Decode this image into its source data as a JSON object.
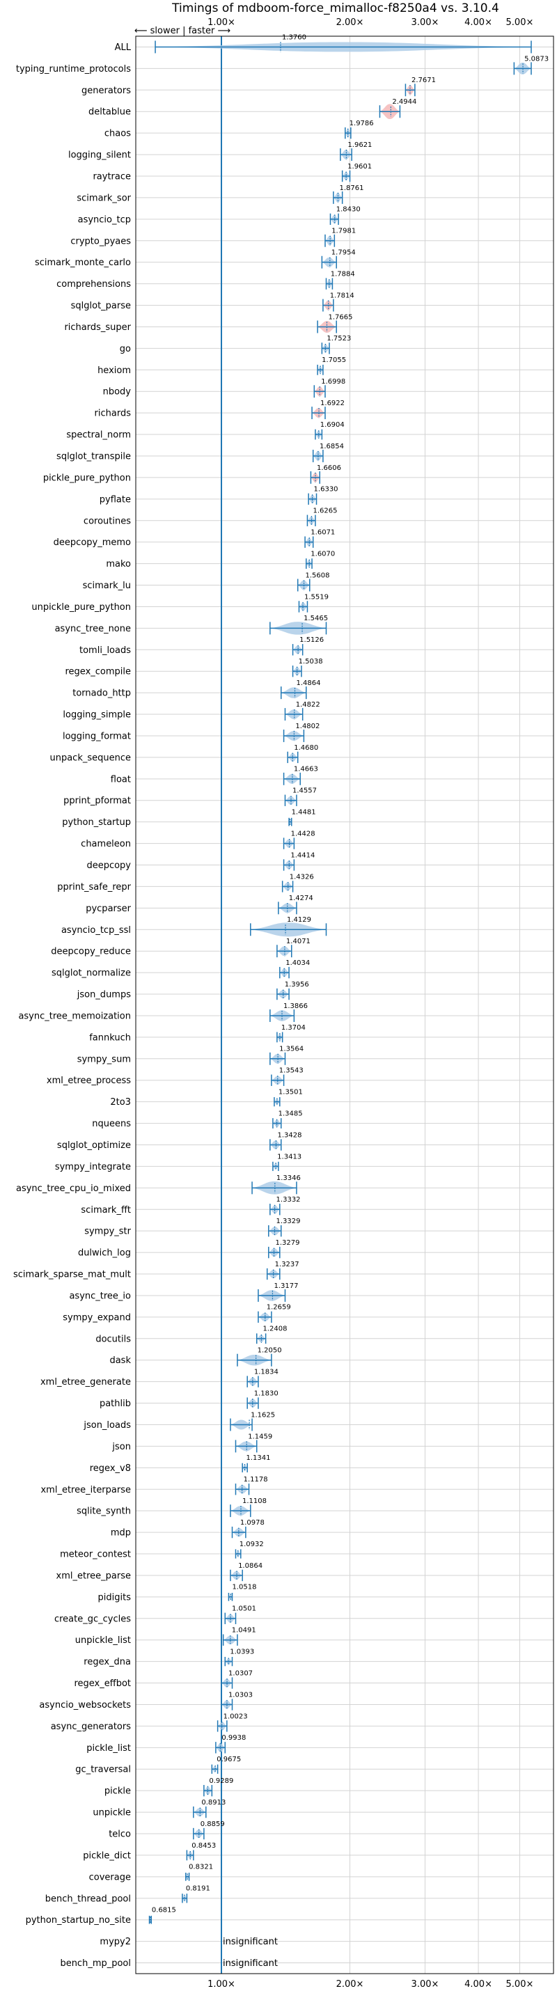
{
  "chart_data": {
    "type": "violin",
    "title": "Timings of mdboom-force_mimalloc-f8250a4 vs. 3.10.4",
    "direction_label": "⟵ slower | faster ⟶",
    "xscale": "log",
    "xlim": [
      0.63,
      6.0
    ],
    "x_ticks": [
      1.0,
      2.0,
      3.0,
      4.0,
      5.0
    ],
    "x_tick_labels": [
      "1.00×",
      "2.00×",
      "3.00×",
      "4.00×",
      "5.00×"
    ],
    "reference_line": 1.0,
    "grid": true,
    "insignificant_text": "insignificant",
    "colors": {
      "violin": "#aecde8",
      "violin_red": "#f4b8b8",
      "line": "#1f77b4",
      "grid": "#d3d3d3"
    },
    "benchmarks": [
      {
        "name": "ALL",
        "value": 1.376,
        "label": "1.3760",
        "lo": 0.7,
        "hi": 5.32,
        "w": 0.45
      },
      {
        "name": "typing_runtime_protocols",
        "value": 5.0873,
        "label": "5.0873",
        "lo": 4.85,
        "hi": 5.32,
        "w": 0.55
      },
      {
        "name": "generators",
        "value": 2.7671,
        "label": "2.7671",
        "lo": 2.7,
        "hi": 2.84,
        "w": 0.45,
        "color": "red"
      },
      {
        "name": "deltablue",
        "value": 2.4944,
        "label": "2.4944",
        "lo": 2.35,
        "hi": 2.62,
        "w": 0.7,
        "color": "red"
      },
      {
        "name": "chaos",
        "value": 1.9786,
        "label": "1.9786",
        "lo": 1.95,
        "hi": 2.01,
        "w": 0.4
      },
      {
        "name": "logging_silent",
        "value": 1.9621,
        "label": "1.9621",
        "lo": 1.9,
        "hi": 2.02,
        "w": 0.45
      },
      {
        "name": "raytrace",
        "value": 1.9601,
        "label": "1.9601",
        "lo": 1.92,
        "hi": 2.0,
        "w": 0.4
      },
      {
        "name": "scimark_sor",
        "value": 1.8761,
        "label": "1.8761",
        "lo": 1.83,
        "hi": 1.92,
        "w": 0.45
      },
      {
        "name": "asyncio_tcp",
        "value": 1.843,
        "label": "1.8430",
        "lo": 1.8,
        "hi": 1.88,
        "w": 0.4
      },
      {
        "name": "crypto_pyaes",
        "value": 1.7981,
        "label": "1.7981",
        "lo": 1.75,
        "hi": 1.84,
        "w": 0.45
      },
      {
        "name": "scimark_monte_carlo",
        "value": 1.7954,
        "label": "1.7954",
        "lo": 1.72,
        "hi": 1.86,
        "w": 0.45
      },
      {
        "name": "comprehensions",
        "value": 1.7884,
        "label": "1.7884",
        "lo": 1.76,
        "hi": 1.82,
        "w": 0.4
      },
      {
        "name": "sqlglot_parse",
        "value": 1.7814,
        "label": "1.7814",
        "lo": 1.73,
        "hi": 1.83,
        "w": 0.45,
        "color": "red"
      },
      {
        "name": "richards_super",
        "value": 1.7665,
        "label": "1.7665",
        "lo": 1.68,
        "hi": 1.86,
        "w": 0.55,
        "color": "red"
      },
      {
        "name": "go",
        "value": 1.7523,
        "label": "1.7523",
        "lo": 1.72,
        "hi": 1.79,
        "w": 0.4
      },
      {
        "name": "hexiom",
        "value": 1.7055,
        "label": "1.7055",
        "lo": 1.68,
        "hi": 1.73,
        "w": 0.35
      },
      {
        "name": "nbody",
        "value": 1.6998,
        "label": "1.6998",
        "lo": 1.65,
        "hi": 1.75,
        "w": 0.45,
        "color": "red"
      },
      {
        "name": "richards",
        "value": 1.6922,
        "label": "1.6922",
        "lo": 1.63,
        "hi": 1.75,
        "w": 0.45,
        "color": "red"
      },
      {
        "name": "spectral_norm",
        "value": 1.6904,
        "label": "1.6904",
        "lo": 1.66,
        "hi": 1.72,
        "w": 0.35
      },
      {
        "name": "sqlglot_transpile",
        "value": 1.6854,
        "label": "1.6854",
        "lo": 1.64,
        "hi": 1.73,
        "w": 0.45
      },
      {
        "name": "pickle_pure_python",
        "value": 1.6606,
        "label": "1.6606",
        "lo": 1.62,
        "hi": 1.7,
        "w": 0.45,
        "color": "red"
      },
      {
        "name": "pyflate",
        "value": 1.633,
        "label": "1.6330",
        "lo": 1.6,
        "hi": 1.67,
        "w": 0.4
      },
      {
        "name": "coroutines",
        "value": 1.6265,
        "label": "1.6265",
        "lo": 1.59,
        "hi": 1.66,
        "w": 0.4
      },
      {
        "name": "deepcopy_memo",
        "value": 1.6071,
        "label": "1.6071",
        "lo": 1.57,
        "hi": 1.64,
        "w": 0.4
      },
      {
        "name": "mako",
        "value": 1.607,
        "label": "1.6070",
        "lo": 1.58,
        "hi": 1.63,
        "w": 0.35
      },
      {
        "name": "scimark_lu",
        "value": 1.5608,
        "label": "1.5608",
        "lo": 1.51,
        "hi": 1.61,
        "w": 0.45
      },
      {
        "name": "unpickle_pure_python",
        "value": 1.5519,
        "label": "1.5519",
        "lo": 1.52,
        "hi": 1.59,
        "w": 0.4
      },
      {
        "name": "async_tree_none",
        "value": 1.5465,
        "label": "1.5465",
        "lo": 1.3,
        "hi": 1.76,
        "w": 0.6
      },
      {
        "name": "tomli_loads",
        "value": 1.5126,
        "label": "1.5126",
        "lo": 1.47,
        "hi": 1.55,
        "w": 0.4
      },
      {
        "name": "regex_compile",
        "value": 1.5038,
        "label": "1.5038",
        "lo": 1.47,
        "hi": 1.54,
        "w": 0.4
      },
      {
        "name": "tornado_http",
        "value": 1.4864,
        "label": "1.4864",
        "lo": 1.38,
        "hi": 1.58,
        "w": 0.5
      },
      {
        "name": "logging_simple",
        "value": 1.4822,
        "label": "1.4822",
        "lo": 1.41,
        "hi": 1.55,
        "w": 0.45
      },
      {
        "name": "logging_format",
        "value": 1.4802,
        "label": "1.4802",
        "lo": 1.4,
        "hi": 1.56,
        "w": 0.45
      },
      {
        "name": "unpack_sequence",
        "value": 1.468,
        "label": "1.4680",
        "lo": 1.43,
        "hi": 1.51,
        "w": 0.4
      },
      {
        "name": "float",
        "value": 1.4663,
        "label": "1.4663",
        "lo": 1.4,
        "hi": 1.53,
        "w": 0.45
      },
      {
        "name": "pprint_pformat",
        "value": 1.4557,
        "label": "1.4557",
        "lo": 1.41,
        "hi": 1.5,
        "w": 0.4
      },
      {
        "name": "python_startup",
        "value": 1.4481,
        "label": "1.4481",
        "lo": 1.44,
        "hi": 1.46,
        "w": 0.25
      },
      {
        "name": "chameleon",
        "value": 1.4428,
        "label": "1.4428",
        "lo": 1.4,
        "hi": 1.48,
        "w": 0.4
      },
      {
        "name": "deepcopy",
        "value": 1.4414,
        "label": "1.4414",
        "lo": 1.4,
        "hi": 1.48,
        "w": 0.4
      },
      {
        "name": "pprint_safe_repr",
        "value": 1.4326,
        "label": "1.4326",
        "lo": 1.39,
        "hi": 1.47,
        "w": 0.4
      },
      {
        "name": "pycparser",
        "value": 1.4274,
        "label": "1.4274",
        "lo": 1.36,
        "hi": 1.5,
        "w": 0.45
      },
      {
        "name": "asyncio_tcp_ssl",
        "value": 1.4129,
        "label": "1.4129",
        "lo": 1.17,
        "hi": 1.76,
        "w": 0.65
      },
      {
        "name": "deepcopy_reduce",
        "value": 1.4071,
        "label": "1.4071",
        "lo": 1.35,
        "hi": 1.46,
        "w": 0.45
      },
      {
        "name": "sqlglot_normalize",
        "value": 1.4034,
        "label": "1.4034",
        "lo": 1.37,
        "hi": 1.44,
        "w": 0.4
      },
      {
        "name": "json_dumps",
        "value": 1.3956,
        "label": "1.3956",
        "lo": 1.35,
        "hi": 1.44,
        "w": 0.4
      },
      {
        "name": "async_tree_memoization",
        "value": 1.3866,
        "label": "1.3866",
        "lo": 1.3,
        "hi": 1.48,
        "w": 0.5
      },
      {
        "name": "fannkuch",
        "value": 1.3704,
        "label": "1.3704",
        "lo": 1.35,
        "hi": 1.39,
        "w": 0.35
      },
      {
        "name": "sympy_sum",
        "value": 1.3564,
        "label": "1.3564",
        "lo": 1.3,
        "hi": 1.41,
        "w": 0.45
      },
      {
        "name": "xml_etree_process",
        "value": 1.3543,
        "label": "1.3543",
        "lo": 1.31,
        "hi": 1.4,
        "w": 0.4
      },
      {
        "name": "2to3",
        "value": 1.3501,
        "label": "1.3501",
        "lo": 1.33,
        "hi": 1.37,
        "w": 0.3
      },
      {
        "name": "nqueens",
        "value": 1.3485,
        "label": "1.3485",
        "lo": 1.32,
        "hi": 1.38,
        "w": 0.35
      },
      {
        "name": "sqlglot_optimize",
        "value": 1.3428,
        "label": "1.3428",
        "lo": 1.3,
        "hi": 1.38,
        "w": 0.4
      },
      {
        "name": "sympy_integrate",
        "value": 1.3413,
        "label": "1.3413",
        "lo": 1.32,
        "hi": 1.36,
        "w": 0.3
      },
      {
        "name": "async_tree_cpu_io_mixed",
        "value": 1.3346,
        "label": "1.3346",
        "lo": 1.18,
        "hi": 1.5,
        "w": 0.6
      },
      {
        "name": "scimark_fft",
        "value": 1.3332,
        "label": "1.3332",
        "lo": 1.3,
        "hi": 1.37,
        "w": 0.4
      },
      {
        "name": "sympy_str",
        "value": 1.3329,
        "label": "1.3329",
        "lo": 1.29,
        "hi": 1.38,
        "w": 0.4
      },
      {
        "name": "dulwich_log",
        "value": 1.3279,
        "label": "1.3279",
        "lo": 1.29,
        "hi": 1.37,
        "w": 0.4
      },
      {
        "name": "scimark_sparse_mat_mult",
        "value": 1.3237,
        "label": "1.3237",
        "lo": 1.28,
        "hi": 1.37,
        "w": 0.4
      },
      {
        "name": "async_tree_io",
        "value": 1.3177,
        "label": "1.3177",
        "lo": 1.22,
        "hi": 1.41,
        "w": 0.5
      },
      {
        "name": "sympy_expand",
        "value": 1.2659,
        "label": "1.2659",
        "lo": 1.22,
        "hi": 1.31,
        "w": 0.4
      },
      {
        "name": "docutils",
        "value": 1.2408,
        "label": "1.2408",
        "lo": 1.21,
        "hi": 1.27,
        "w": 0.35
      },
      {
        "name": "dask",
        "value": 1.205,
        "label": "1.2050",
        "lo": 1.09,
        "hi": 1.31,
        "w": 0.5
      },
      {
        "name": "xml_etree_generate",
        "value": 1.1834,
        "label": "1.1834",
        "lo": 1.15,
        "hi": 1.22,
        "w": 0.4
      },
      {
        "name": "pathlib",
        "value": 1.183,
        "label": "1.1830",
        "lo": 1.15,
        "hi": 1.22,
        "w": 0.4
      },
      {
        "name": "json_loads",
        "value": 1.1625,
        "label": "1.1625",
        "lo": 1.05,
        "hi": 1.18,
        "w": 0.45
      },
      {
        "name": "json",
        "value": 1.1459,
        "label": "1.1459",
        "lo": 1.08,
        "hi": 1.21,
        "w": 0.45
      },
      {
        "name": "regex_v8",
        "value": 1.1341,
        "label": "1.1341",
        "lo": 1.12,
        "hi": 1.15,
        "w": 0.3
      },
      {
        "name": "xml_etree_iterparse",
        "value": 1.1178,
        "label": "1.1178",
        "lo": 1.08,
        "hi": 1.16,
        "w": 0.4
      },
      {
        "name": "sqlite_synth",
        "value": 1.1108,
        "label": "1.1108",
        "lo": 1.05,
        "hi": 1.17,
        "w": 0.45
      },
      {
        "name": "mdp",
        "value": 1.0978,
        "label": "1.0978",
        "lo": 1.06,
        "hi": 1.14,
        "w": 0.4
      },
      {
        "name": "meteor_contest",
        "value": 1.0932,
        "label": "1.0932",
        "lo": 1.08,
        "hi": 1.11,
        "w": 0.3
      },
      {
        "name": "xml_etree_parse",
        "value": 1.0864,
        "label": "1.0864",
        "lo": 1.05,
        "hi": 1.12,
        "w": 0.4
      },
      {
        "name": "pidigits",
        "value": 1.0518,
        "label": "1.0518",
        "lo": 1.04,
        "hi": 1.06,
        "w": 0.25
      },
      {
        "name": "create_gc_cycles",
        "value": 1.0501,
        "label": "1.0501",
        "lo": 1.02,
        "hi": 1.08,
        "w": 0.4
      },
      {
        "name": "unpickle_list",
        "value": 1.0491,
        "label": "1.0491",
        "lo": 1.01,
        "hi": 1.09,
        "w": 0.4
      },
      {
        "name": "regex_dna",
        "value": 1.0393,
        "label": "1.0393",
        "lo": 1.02,
        "hi": 1.06,
        "w": 0.3
      },
      {
        "name": "regex_effbot",
        "value": 1.0307,
        "label": "1.0307",
        "lo": 1.0,
        "hi": 1.06,
        "w": 0.4
      },
      {
        "name": "asyncio_websockets",
        "value": 1.0303,
        "label": "1.0303",
        "lo": 1.0,
        "hi": 1.06,
        "w": 0.4
      },
      {
        "name": "async_generators",
        "value": 1.0023,
        "label": "1.0023",
        "lo": 0.98,
        "hi": 1.03,
        "w": 0.4
      },
      {
        "name": "pickle_list",
        "value": 0.9938,
        "label": "0.9938",
        "lo": 0.97,
        "hi": 1.02,
        "w": 0.4
      },
      {
        "name": "gc_traversal",
        "value": 0.9675,
        "label": "0.9675",
        "lo": 0.95,
        "hi": 0.98,
        "w": 0.3
      },
      {
        "name": "pickle",
        "value": 0.9289,
        "label": "0.9289",
        "lo": 0.91,
        "hi": 0.95,
        "w": 0.4
      },
      {
        "name": "unpickle",
        "value": 0.8913,
        "label": "0.8913",
        "lo": 0.86,
        "hi": 0.92,
        "w": 0.4
      },
      {
        "name": "telco",
        "value": 0.8859,
        "label": "0.8859",
        "lo": 0.86,
        "hi": 0.91,
        "w": 0.4
      },
      {
        "name": "pickle_dict",
        "value": 0.8453,
        "label": "0.8453",
        "lo": 0.83,
        "hi": 0.86,
        "w": 0.35
      },
      {
        "name": "coverage",
        "value": 0.8321,
        "label": "0.8321",
        "lo": 0.825,
        "hi": 0.84,
        "w": 0.25
      },
      {
        "name": "bench_thread_pool",
        "value": 0.8191,
        "label": "0.8191",
        "lo": 0.81,
        "hi": 0.83,
        "w": 0.3
      },
      {
        "name": "python_startup_no_site",
        "value": 0.6815,
        "label": "0.6815",
        "lo": 0.678,
        "hi": 0.685,
        "w": 0.25
      },
      {
        "name": "mypy2",
        "value": null,
        "label": "insignificant"
      },
      {
        "name": "bench_mp_pool",
        "value": null,
        "label": "insignificant"
      }
    ]
  }
}
